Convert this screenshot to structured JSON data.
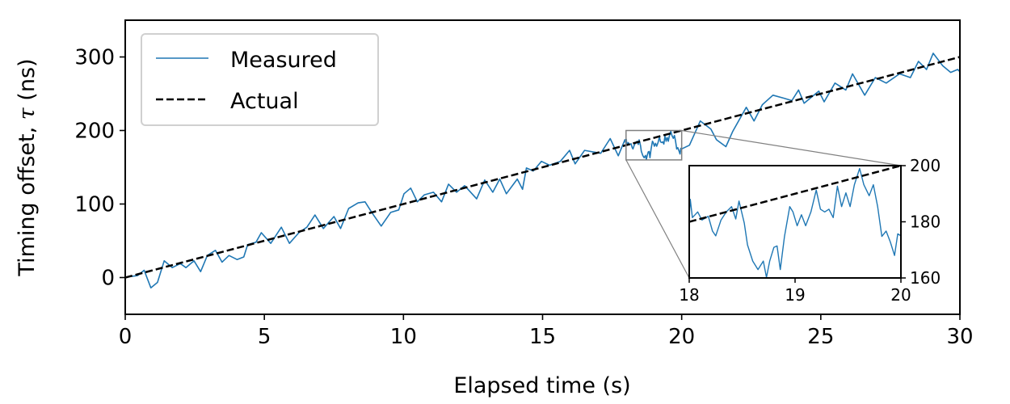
{
  "chart_data": [
    {
      "id": "main",
      "type": "line",
      "xlabel": "Elapsed time (s)",
      "ylabel_prefix": "Timing offset, ",
      "ylabel_symbol": "τ",
      "ylabel_suffix": " (ns)",
      "xlim": [
        0,
        30
      ],
      "ylim": [
        -50,
        350
      ],
      "xticks": [
        0,
        5,
        10,
        15,
        20,
        25,
        30
      ],
      "xtick_labels": [
        "0",
        "5",
        "10",
        "15",
        "20",
        "25",
        "30"
      ],
      "yticks": [
        0,
        100,
        200,
        300
      ],
      "ytick_labels": [
        "0",
        "100",
        "200",
        "300"
      ],
      "grid": false,
      "legend": {
        "placement": "top-left",
        "entries": [
          "Measured",
          "Actual"
        ]
      },
      "colors": {
        "measured": "#1f77b4",
        "actual": "#000000",
        "zoom_box": "#808080"
      },
      "series": [
        {
          "name": "Measured",
          "style": "solid",
          "x": [
            0,
            0.05,
            0.44,
            0.68,
            0.92,
            1.16,
            1.4,
            1.69,
            1.98,
            2.18,
            2.47,
            2.71,
            2.95,
            3.24,
            3.48,
            3.73,
            4.02,
            4.26,
            4.4,
            4.7,
            4.89,
            5.23,
            5.61,
            5.9,
            6.24,
            6.53,
            6.82,
            7.12,
            7.5,
            7.74,
            8.03,
            8.37,
            8.62,
            8.86,
            9.2,
            9.54,
            9.83,
            10.02,
            10.26,
            10.5,
            10.75,
            11.08,
            11.37,
            11.62,
            11.91,
            12.2,
            12.63,
            12.92,
            13.21,
            13.46,
            13.7,
            14.09,
            14.28,
            14.42,
            14.67,
            14.96,
            15.25,
            15.64,
            15.97,
            16.17,
            16.51,
            17.09,
            17.43,
            17.72,
            17.96,
            18.0,
            18.01,
            18.03,
            18.08,
            18.12,
            18.18,
            18.22,
            18.25,
            18.3,
            18.35,
            18.4,
            18.44,
            18.47,
            18.52,
            18.55,
            18.6,
            18.65,
            18.7,
            18.73,
            18.76,
            18.8,
            18.83,
            18.86,
            18.9,
            18.95,
            18.98,
            19.02,
            19.06,
            19.1,
            19.15,
            19.2,
            19.24,
            19.28,
            19.32,
            19.36,
            19.4,
            19.44,
            19.48,
            19.52,
            19.56,
            19.61,
            19.65,
            19.7,
            19.74,
            19.78,
            19.82,
            19.86,
            19.9,
            19.94,
            19.97,
            20.0,
            20.28,
            20.67,
            21.05,
            21.25,
            21.59,
            21.83,
            22.32,
            22.6,
            22.9,
            23.28,
            23.67,
            23.96,
            24.2,
            24.4,
            24.93,
            25.12,
            25.51,
            25.9,
            26.14,
            26.58,
            26.96,
            27.35,
            27.83,
            28.22,
            28.51,
            28.8,
            29.04,
            29.38,
            29.67,
            29.92,
            30.0
          ],
          "y": [
            0,
            0.7,
            2.6,
            9.9,
            -14,
            -6.6,
            22.7,
            13.5,
            19,
            13.5,
            22.7,
            8,
            30,
            37,
            21,
            30,
            24.5,
            28,
            44.7,
            48,
            61,
            46.5,
            68.5,
            46.5,
            61,
            68.5,
            85,
            66.7,
            83,
            66.7,
            94,
            101.5,
            103,
            88.6,
            70,
            88.6,
            92,
            114,
            121.6,
            103,
            112.5,
            116,
            103,
            127,
            116,
            125,
            107,
            132.6,
            116,
            134,
            114,
            134,
            120,
            149,
            145,
            158,
            152.7,
            158,
            173,
            154.6,
            173,
            169,
            189,
            165.6,
            187.5,
            182,
            188,
            181.5,
            183.5,
            180.6,
            182,
            176.7,
            175,
            180.6,
            183.5,
            185.4,
            181,
            187.4,
            179.6,
            171.8,
            166,
            163,
            166,
            160.2,
            166,
            170.9,
            171.4,
            163,
            174.8,
            185.4,
            183.5,
            178.6,
            182.5,
            178.6,
            183.5,
            191.3,
            184.5,
            183.5,
            184.5,
            181.5,
            192.7,
            185.4,
            190.3,
            185.4,
            193.2,
            199,
            193.2,
            189.3,
            193.2,
            185.4,
            174.8,
            176.7,
            172.8,
            168,
            175.7,
            175,
            180,
            213,
            202,
            187.5,
            178,
            198.5,
            231.5,
            213,
            235,
            248,
            244,
            240.7,
            255,
            237,
            253.5,
            239,
            264.5,
            255,
            277,
            248,
            272,
            264.5,
            277,
            272,
            294,
            283,
            305,
            288,
            279,
            283,
            280
          ]
        },
        {
          "name": "Actual",
          "style": "dashed",
          "x": [
            0,
            30
          ],
          "y": [
            0,
            300
          ]
        }
      ]
    },
    {
      "id": "inset",
      "type": "line",
      "xlim": [
        18,
        20
      ],
      "ylim": [
        160,
        200
      ],
      "xticks": [
        18,
        19,
        20
      ],
      "xtick_labels": [
        "18",
        "19",
        "20"
      ],
      "yticks": [
        160,
        180,
        200
      ],
      "ytick_labels": [
        "160",
        "180",
        "200"
      ],
      "ytick_side": "right",
      "series_ref": "same as main (zoomed)"
    }
  ]
}
